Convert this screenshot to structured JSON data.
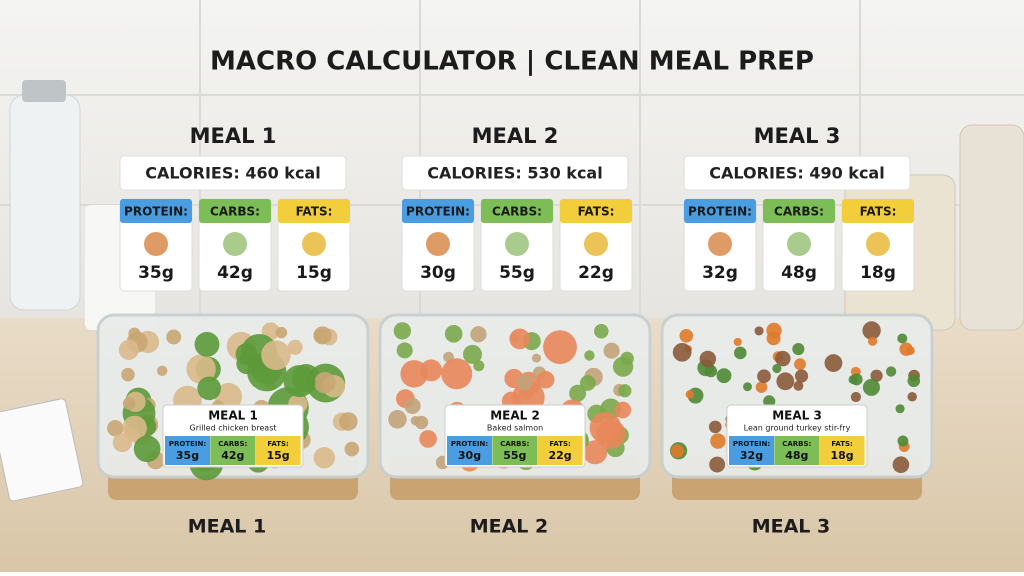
{
  "title": "MACRO CALCULATOR | CLEAN MEAL PREP",
  "meals": [
    {
      "title": "MEAL 1",
      "calories": "CALORIES: 460 kcal",
      "dish": "Grilled chicken breast",
      "macros": [
        {
          "name": "PROTEIN:",
          "amount": "35g"
        },
        {
          "name": "CARBS:",
          "amount": "42g"
        },
        {
          "name": "FATS:",
          "amount": "15g"
        }
      ]
    },
    {
      "title": "MEAL 2",
      "calories": "CALORIES: 530 kcal",
      "dish": "Baked salmon",
      "macros": [
        {
          "name": "PROTEIN:",
          "amount": "30g"
        },
        {
          "name": "CARBS:",
          "amount": "55g"
        },
        {
          "name": "FATS:",
          "amount": "22g"
        }
      ]
    },
    {
      "title": "MEAL 3",
      "calories": "CALORIES: 490 kcal",
      "dish": "Lean ground turkey stir-fry",
      "macros": [
        {
          "name": "PROTEIN:",
          "amount": "32g"
        },
        {
          "name": "CARBS:",
          "amount": "48g"
        },
        {
          "name": "FATS:",
          "amount": "18g"
        }
      ]
    }
  ]
}
